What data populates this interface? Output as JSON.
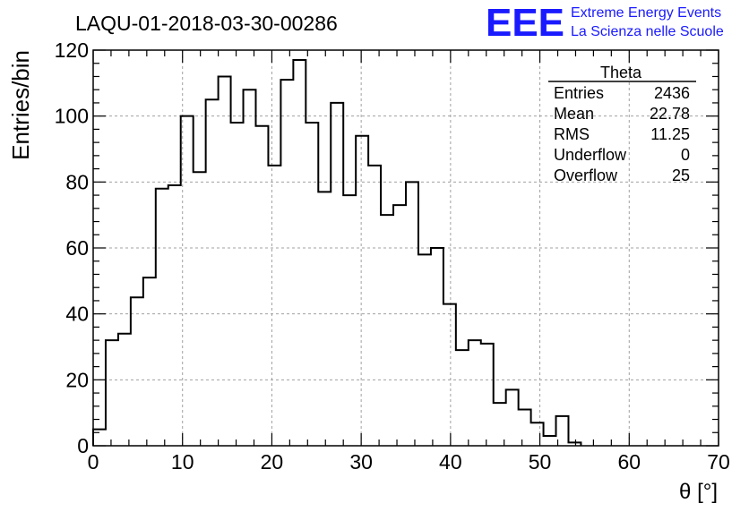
{
  "chart_data": {
    "type": "bar",
    "title": "LAQU-01-2018-03-30-00286",
    "xlabel": "θ [°]",
    "ylabel": "Entries/bin",
    "xlim": [
      0,
      70
    ],
    "ylim": [
      0,
      120
    ],
    "x_ticks": [
      0,
      10,
      20,
      30,
      40,
      50,
      60,
      70
    ],
    "y_ticks": [
      0,
      20,
      40,
      60,
      80,
      100,
      120
    ],
    "grid": true,
    "bin_width": 1.4,
    "bin_edges_start": 0,
    "values": [
      5,
      32,
      34,
      45,
      51,
      78,
      79,
      100,
      83,
      105,
      112,
      98,
      108,
      97,
      85,
      111,
      117,
      98,
      77,
      104,
      76,
      94,
      85,
      70,
      73,
      80,
      58,
      60,
      43,
      29,
      32,
      31,
      13,
      17,
      11,
      7,
      3,
      9,
      1
    ]
  },
  "stats_box": {
    "name": "Theta",
    "rows": [
      {
        "label": "Entries",
        "value": "2436"
      },
      {
        "label": "Mean",
        "value": "22.78"
      },
      {
        "label": "RMS",
        "value": "11.25"
      },
      {
        "label": "Underflow",
        "value": "0"
      },
      {
        "label": "Overflow",
        "value": "25"
      }
    ]
  },
  "logo": {
    "mark": "EEE",
    "line1": "Extreme Energy Events",
    "line2": "La Scienza nelle Scuole",
    "color": "#1a1aff"
  }
}
